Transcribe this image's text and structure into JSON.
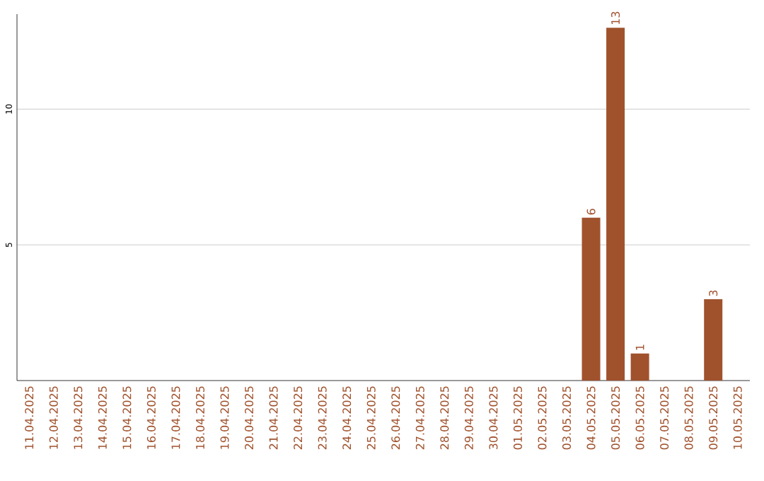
{
  "chart_data": {
    "type": "bar",
    "categories": [
      "11.04.2025",
      "12.04.2025",
      "13.04.2025",
      "14.04.2025",
      "15.04.2025",
      "16.04.2025",
      "17.04.2025",
      "18.04.2025",
      "19.04.2025",
      "20.04.2025",
      "21.04.2025",
      "22.04.2025",
      "23.04.2025",
      "24.04.2025",
      "25.04.2025",
      "26.04.2025",
      "27.04.2025",
      "28.04.2025",
      "29.04.2025",
      "30.04.2025",
      "01.05.2025",
      "02.05.2025",
      "03.05.2025",
      "04.05.2025",
      "05.05.2025",
      "06.05.2025",
      "07.05.2025",
      "08.05.2025",
      "09.05.2025",
      "10.05.2025"
    ],
    "values": [
      0,
      0,
      0,
      0,
      0,
      0,
      0,
      0,
      0,
      0,
      0,
      0,
      0,
      0,
      0,
      0,
      0,
      0,
      0,
      0,
      0,
      0,
      0,
      6,
      13,
      1,
      0,
      0,
      3,
      0
    ],
    "value_labels": [
      null,
      null,
      null,
      null,
      null,
      null,
      null,
      null,
      null,
      null,
      null,
      null,
      null,
      null,
      null,
      null,
      null,
      null,
      null,
      null,
      null,
      null,
      null,
      "6",
      "13",
      "1",
      null,
      null,
      "3",
      null
    ],
    "color": "#a0522d",
    "ylim": [
      0,
      13.5
    ],
    "yticks": [
      5,
      10
    ],
    "grid": "y"
  }
}
